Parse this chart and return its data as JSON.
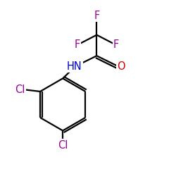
{
  "bg_color": "#ffffff",
  "atom_colors": {
    "C": "#000000",
    "N": "#0000cc",
    "O": "#cc0000",
    "F": "#990099",
    "Cl": "#990099"
  },
  "figsize": [
    2.5,
    2.5
  ],
  "dpi": 100,
  "lw": 1.6,
  "fontsize": 10.5
}
